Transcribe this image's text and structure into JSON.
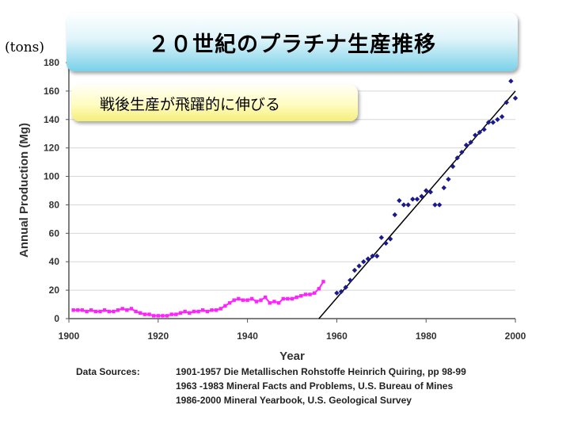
{
  "header": {
    "title": "２０世紀のプラチナ生産推移",
    "units": "(tons)",
    "callout": "戦後生産が飛躍的に伸びる"
  },
  "colors": {
    "prewar": "#ff22ff",
    "postwar": "#1a1a8c",
    "trend": "#000000",
    "grid": "#d6d6d6"
  },
  "chart_data": {
    "type": "scatter",
    "title": "２０世紀のプラチナ生産推移",
    "xlabel": "Year",
    "ylabel": "Annual Production (Mg)",
    "xlim": [
      1900,
      2000
    ],
    "ylim": [
      0,
      180
    ],
    "xticks": [
      1900,
      1920,
      1940,
      1960,
      1980,
      2000
    ],
    "yticks": [
      0,
      20,
      40,
      60,
      80,
      100,
      120,
      140,
      160,
      180
    ],
    "series": [
      {
        "name": "1901-1957",
        "style": "line-markers",
        "x": [
          1901,
          1902,
          1903,
          1904,
          1905,
          1906,
          1907,
          1908,
          1909,
          1910,
          1911,
          1912,
          1913,
          1914,
          1915,
          1916,
          1917,
          1918,
          1919,
          1920,
          1921,
          1922,
          1923,
          1924,
          1925,
          1926,
          1927,
          1928,
          1929,
          1930,
          1931,
          1932,
          1933,
          1934,
          1935,
          1936,
          1937,
          1938,
          1939,
          1940,
          1941,
          1942,
          1943,
          1944,
          1945,
          1946,
          1947,
          1948,
          1949,
          1950,
          1951,
          1952,
          1953,
          1954,
          1955,
          1956,
          1957
        ],
        "y": [
          6,
          6,
          6,
          5,
          6,
          5,
          5,
          6,
          5,
          5,
          6,
          7,
          6,
          7,
          5,
          4,
          3,
          3,
          2,
          2,
          2,
          2,
          3,
          3,
          4,
          5,
          4,
          5,
          5,
          6,
          5,
          6,
          6,
          7,
          9,
          11,
          13,
          14,
          13,
          13,
          14,
          12,
          13,
          15,
          11,
          12,
          11,
          14,
          14,
          14,
          15,
          16,
          17,
          17,
          18,
          21,
          26
        ]
      },
      {
        "name": "1963-2000",
        "style": "markers",
        "x": [
          1960,
          1961,
          1962,
          1963,
          1964,
          1965,
          1966,
          1967,
          1968,
          1969,
          1970,
          1971,
          1972,
          1973,
          1974,
          1975,
          1976,
          1977,
          1978,
          1979,
          1980,
          1981,
          1982,
          1983,
          1984,
          1985,
          1986,
          1987,
          1988,
          1989,
          1990,
          1991,
          1992,
          1993,
          1994,
          1995,
          1996,
          1997,
          1998,
          1999,
          2000
        ],
        "y": [
          18,
          19,
          22,
          27,
          34,
          37,
          40,
          42,
          44,
          44,
          57,
          53,
          56,
          73,
          83,
          80,
          80,
          84,
          84,
          86,
          90,
          89,
          80,
          80,
          92,
          98,
          107,
          113,
          117,
          122,
          124,
          129,
          131,
          133,
          138,
          138,
          140,
          142,
          152,
          167,
          155
        ]
      },
      {
        "name": "trend",
        "style": "line",
        "x": [
          1956,
          2000
        ],
        "y": [
          0,
          160
        ]
      }
    ],
    "sources": [
      {
        "label": "Data Sources:",
        "text": "1901-1957 Die Metallischen Rohstoffe Heinrich Quiring, pp 98-99"
      },
      {
        "label": "",
        "text": "1963 -1983 Mineral Facts and Problems, U.S. Bureau of Mines"
      },
      {
        "label": "",
        "text": "1986-2000 Mineral Yearbook, U.S. Geological Survey"
      }
    ]
  }
}
